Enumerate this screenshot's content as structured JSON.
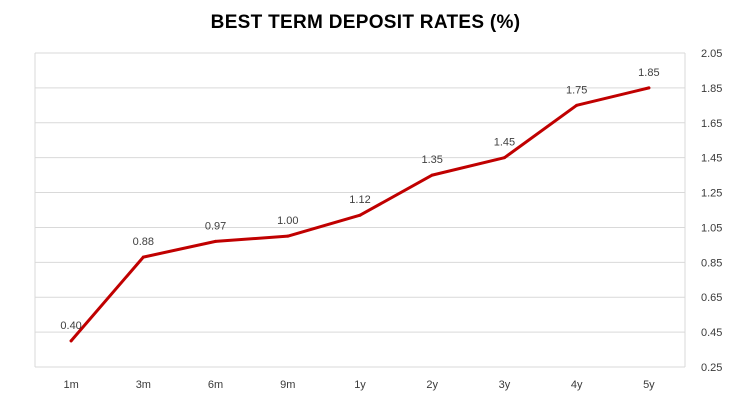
{
  "chart_data": {
    "type": "line",
    "title": "BEST TERM DEPOSIT RATES (%)",
    "categories": [
      "1m",
      "3m",
      "6m",
      "9m",
      "1y",
      "2y",
      "3y",
      "4y",
      "5y"
    ],
    "series": [
      {
        "values": [
          0.4,
          0.88,
          0.97,
          1.0,
          1.12,
          1.35,
          1.45,
          1.75,
          1.85
        ],
        "color": "#c00000"
      }
    ],
    "data_labels": [
      "0.40",
      "0.88",
      "0.97",
      "1.00",
      "1.12",
      "1.35",
      "1.45",
      "1.75",
      "1.85"
    ],
    "ylim": [
      0.25,
      2.05
    ],
    "yticks": [
      "0.25",
      "0.45",
      "0.65",
      "0.85",
      "1.05",
      "1.25",
      "1.45",
      "1.65",
      "1.85",
      "2.05"
    ],
    "y_axis_position": "right",
    "grid": true,
    "gridline_color": "#d9d9d9",
    "legend": "none"
  }
}
